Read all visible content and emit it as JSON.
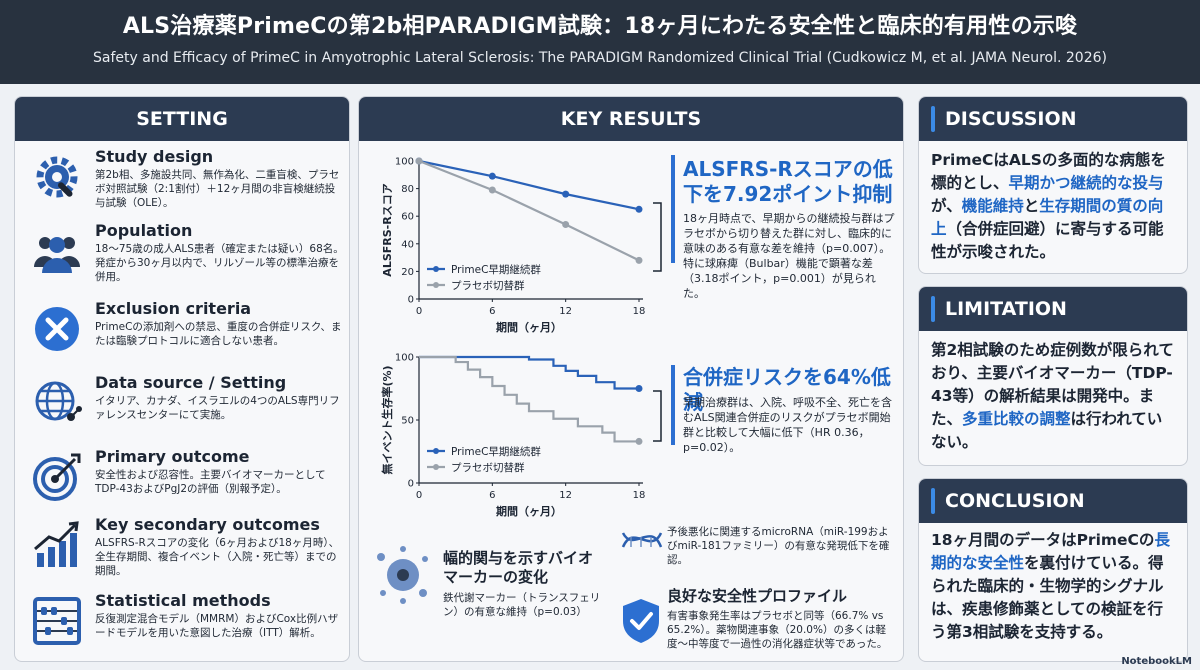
{
  "header": {
    "title": "ALS治療薬PrimeCの第2b相PARADIGM試験：18ヶ月にわたる安全性と臨床的有用性の示唆",
    "subtitle": "Safety and Efficacy of PrimeC in Amyotrophic Lateral Sclerosis: The PARADIGM Randomized Clinical Trial (Cudkowicz M, et al. JAMA Neurol. 2026)"
  },
  "setting": {
    "heading": "SETTING",
    "items": [
      {
        "icon": "gear-wrench-icon",
        "title": "Study design",
        "text": "第2b相、多施設共同、無作為化、二重盲検、プラセボ対照試験（2:1割付）＋12ヶ月間の非盲検継続投与試験（OLE）。"
      },
      {
        "icon": "people-icon",
        "title": "Population",
        "text": "18〜75歳の成人ALS患者（確定または疑い）68名。発症から30ヶ月以内で、リルゾール等の標準治療を併用。"
      },
      {
        "icon": "x-circle-icon",
        "title": "Exclusion criteria",
        "text": "PrimeCの添加剤への禁忌、重度の合併症リスク、または臨験プロトコルに適合しない患者。"
      },
      {
        "icon": "globe-network-icon",
        "title": "Data source / Setting",
        "text": "イタリア、カナダ、イスラエルの4つのALS専門リファレンスセンターにて実施。"
      },
      {
        "icon": "target-icon",
        "title": "Primary outcome",
        "text": "安全性および忍容性。主要バイオマーカーとしてTDP-43およびPgJ2の評価（別報予定）。"
      },
      {
        "icon": "trend-chart-icon",
        "title": "Key secondary outcomes",
        "text": "ALSFRS-Rスコアの変化（6ヶ月および18ヶ月時）、全生存期間、複合イベント（入院・死亡等）までの期間。"
      },
      {
        "icon": "abacus-icon",
        "title": "Statistical methods",
        "text": "反復測定混合モデル（MMRM）およびCox比例ハザードモデルを用いた意図した治療（ITT）解析。"
      }
    ]
  },
  "key_results": {
    "heading": "KEY RESULTS",
    "result1": {
      "headline": "ALSFRS-Rスコアの低下を7.92ポイント抑制",
      "text": "18ヶ月時点で、早期からの継続投与群はプラセボから切り替えた群に対し、臨床的に意味のある有意な差を維持（p=0.007）。特に球麻痺（Bulbar）機能で顕著な差（3.18ポイント，p=0.001）が見られた。"
    },
    "result2": {
      "headline": "合併症リスクを64%低減",
      "text": "早期治療群は、入院、呼吸不全、死亡を含むALS関連合併症のリスクがプラセボ開始群と比較して大幅に低下（HR 0.36，p=0.02）。"
    },
    "bottom": {
      "biomarker_title": "幅的関与を示すバイオマーカーの変化",
      "biomarker_text": "鉄代謝マーカー（トランスフェリン）の有意な維持（p=0.03）",
      "mirna_text": "予後悪化に関連するmicroRNA（miR-199およびmiR-181ファミリー）の有意な発現低下を確認。",
      "safety_title": "良好な安全性プロファイル",
      "safety_text": "有害事象発生率はプラセボと同等（66.7% vs 65.2%）。薬物関連事象（20.0%）の多くは軽度〜中等度で一過性の消化器症状等であった。"
    }
  },
  "chart_data": [
    {
      "type": "line",
      "title": "",
      "xlabel": "期間（ヶ月）",
      "ylabel": "ALSFRS-Rスコア",
      "x": [
        0,
        6,
        12,
        18
      ],
      "xlim": [
        0,
        18
      ],
      "ylim": [
        0,
        100
      ],
      "yticks": [
        0,
        20,
        40,
        60,
        80,
        100
      ],
      "legend_position": "bottom-left",
      "series": [
        {
          "name": "PrimeC早期継続群",
          "color": "#2a62b8",
          "values": [
            100,
            89,
            76,
            65
          ]
        },
        {
          "name": "プラセボ切替群",
          "color": "#9aa2ab",
          "values": [
            100,
            79,
            54,
            28
          ]
        }
      ]
    },
    {
      "type": "line",
      "title": "",
      "xlabel": "期間（ヶ月）",
      "ylabel": "無イベント生存率(%)",
      "x": [
        0,
        6,
        12,
        18
      ],
      "xlim": [
        0,
        18
      ],
      "ylim": [
        0,
        100
      ],
      "yticks": [
        0,
        50,
        100
      ],
      "legend_position": "bottom-left",
      "step": true,
      "series": [
        {
          "name": "PrimeC早期継続群",
          "color": "#2a62b8",
          "points": [
            [
              0,
              100
            ],
            [
              9,
              100
            ],
            [
              9,
              98
            ],
            [
              11,
              98
            ],
            [
              11,
              93
            ],
            [
              12,
              93
            ],
            [
              12,
              89
            ],
            [
              13,
              89
            ],
            [
              13,
              85
            ],
            [
              14.5,
              85
            ],
            [
              14.5,
              80
            ],
            [
              16,
              80
            ],
            [
              16,
              75
            ],
            [
              18,
              75
            ]
          ]
        },
        {
          "name": "プラセボ切替群",
          "color": "#9aa2ab",
          "points": [
            [
              0,
              100
            ],
            [
              3,
              100
            ],
            [
              3,
              96
            ],
            [
              4,
              96
            ],
            [
              4,
              90
            ],
            [
              5,
              90
            ],
            [
              5,
              84
            ],
            [
              6,
              84
            ],
            [
              6,
              77
            ],
            [
              7,
              77
            ],
            [
              7,
              70
            ],
            [
              8,
              70
            ],
            [
              8,
              63
            ],
            [
              9,
              63
            ],
            [
              9,
              57
            ],
            [
              11,
              57
            ],
            [
              11,
              51
            ],
            [
              13,
              51
            ],
            [
              13,
              45
            ],
            [
              15,
              45
            ],
            [
              15,
              40
            ],
            [
              16,
              40
            ],
            [
              16,
              33
            ],
            [
              18,
              33
            ]
          ]
        }
      ]
    }
  ],
  "discussion": {
    "heading": "DISCUSSION",
    "parts": [
      "PrimeCはALSの多面的な病態を標的とし、",
      "早期かつ継続的な投与",
      "が、",
      "機能維持",
      "と",
      "生存期間の質の向上",
      "（合併症回避）に寄与する可能性が示唆された。"
    ]
  },
  "limitation": {
    "heading": "LIMITATION",
    "parts": [
      "第2相試験のため症例数が限られており、主要バイオマーカー（TDP-43等）の解析結果は開発中。また、",
      "多重比較の調整",
      "は行われていない。"
    ]
  },
  "conclusion": {
    "heading": "CONCLUSION",
    "parts": [
      "18ヶ月間のデータはPrimeCの",
      "長期的な安全性",
      "を裏付けている。得られた臨床的・生物学的シグナルは、疾患修飾薬としての検証を行う第3相試験を支持する。"
    ]
  },
  "footer": {
    "brand": "NotebookLM"
  }
}
